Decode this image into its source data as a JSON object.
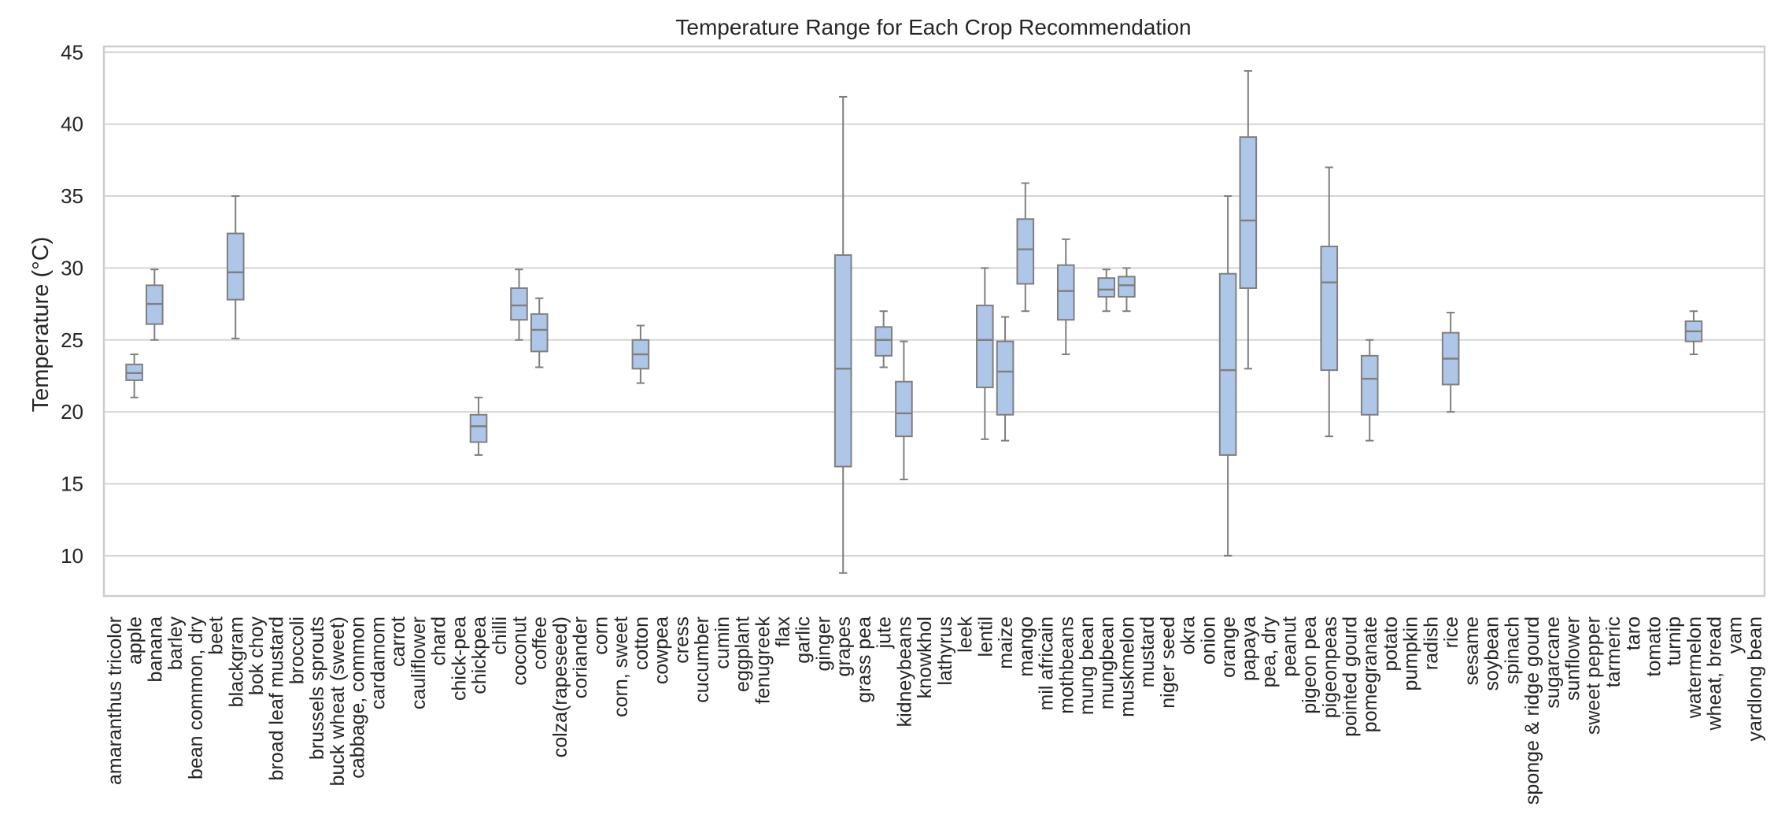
{
  "chart_data": {
    "type": "box",
    "title": "Temperature Range for Each Crop Recommendation",
    "ylabel": "Temperature (°C)",
    "xlabel": "",
    "ylim": [
      7.2,
      45.4
    ],
    "yticks": [
      10,
      15,
      20,
      25,
      30,
      35,
      40,
      45
    ],
    "grid": true,
    "box_color": "#aec7e8",
    "line_color": "#7f7f7f",
    "categories": [
      "amaranthus tricolor",
      "apple",
      "banana",
      "barley",
      "bean common, dry",
      "beet",
      "blackgram",
      "bok choy",
      "broad leaf mustard",
      "broccoli",
      "brussels sprouts",
      "buck wheat (sweet)",
      "cabbage, common",
      "cardamom",
      "carrot",
      "cauliflower",
      "chard",
      "chick-pea",
      "chickpea",
      "chilli",
      "coconut",
      "coffee",
      "colza(rapeseed)",
      "coriander",
      "corn",
      "corn, sweet",
      "cotton",
      "cowpea",
      "cress",
      "cucumber",
      "cumin",
      "eggplant",
      "fenugreek",
      "flax",
      "garlic",
      "ginger",
      "grapes",
      "grass pea",
      "jute",
      "kidneybeans",
      "knowkhol",
      "lathyrus",
      "leek",
      "lentil",
      "maize",
      "mango",
      "mil africain",
      "mothbeans",
      "mung bean",
      "mungbean",
      "muskmelon",
      "mustard",
      "niger seed",
      "okra",
      "onion",
      "orange",
      "papaya",
      "pea, dry",
      "peanut",
      "pigeon pea",
      "pigeonpeas",
      "pointed gourd",
      "pomegranate",
      "potato",
      "pumpkin",
      "radish",
      "rice",
      "sesame",
      "soybean",
      "spinach",
      "sponge & ridge gourd",
      "sugarcane",
      "sunflower",
      "sweet pepper",
      "tarmeric",
      "taro",
      "tomato",
      "turnip",
      "watermelon",
      "wheat, bread",
      "yam",
      "yardlong bean"
    ],
    "boxes": [
      {
        "category": "apple",
        "min": 21.0,
        "q1": 22.2,
        "median": 22.7,
        "q3": 23.3,
        "max": 24.0
      },
      {
        "category": "banana",
        "min": 25.0,
        "q1": 26.1,
        "median": 27.5,
        "q3": 28.8,
        "max": 29.9
      },
      {
        "category": "blackgram",
        "min": 25.1,
        "q1": 27.8,
        "median": 29.7,
        "q3": 32.4,
        "max": 35.0
      },
      {
        "category": "chickpea",
        "min": 17.0,
        "q1": 17.9,
        "median": 19.0,
        "q3": 19.8,
        "max": 21.0
      },
      {
        "category": "coconut",
        "min": 25.0,
        "q1": 26.4,
        "median": 27.4,
        "q3": 28.6,
        "max": 29.9
      },
      {
        "category": "coffee",
        "min": 23.1,
        "q1": 24.2,
        "median": 25.7,
        "q3": 26.8,
        "max": 27.9
      },
      {
        "category": "cotton",
        "min": 22.0,
        "q1": 23.0,
        "median": 24.0,
        "q3": 25.0,
        "max": 26.0
      },
      {
        "category": "grapes",
        "min": 8.8,
        "q1": 16.2,
        "median": 23.0,
        "q3": 30.9,
        "max": 41.9
      },
      {
        "category": "jute",
        "min": 23.1,
        "q1": 23.9,
        "median": 25.0,
        "q3": 25.9,
        "max": 27.0
      },
      {
        "category": "kidneybeans",
        "min": 15.3,
        "q1": 18.3,
        "median": 19.9,
        "q3": 22.1,
        "max": 24.9
      },
      {
        "category": "lentil",
        "min": 18.1,
        "q1": 21.7,
        "median": 25.0,
        "q3": 27.4,
        "max": 30.0
      },
      {
        "category": "maize",
        "min": 18.0,
        "q1": 19.8,
        "median": 22.8,
        "q3": 24.9,
        "max": 26.6
      },
      {
        "category": "mango",
        "min": 27.0,
        "q1": 28.9,
        "median": 31.3,
        "q3": 33.4,
        "max": 35.9
      },
      {
        "category": "mothbeans",
        "min": 24.0,
        "q1": 26.4,
        "median": 28.4,
        "q3": 30.2,
        "max": 32.0
      },
      {
        "category": "mungbean",
        "min": 27.0,
        "q1": 28.0,
        "median": 28.5,
        "q3": 29.3,
        "max": 29.9
      },
      {
        "category": "muskmelon",
        "min": 27.0,
        "q1": 28.0,
        "median": 28.8,
        "q3": 29.4,
        "max": 30.0
      },
      {
        "category": "orange",
        "min": 10.0,
        "q1": 17.0,
        "median": 22.9,
        "q3": 29.6,
        "max": 35.0
      },
      {
        "category": "papaya",
        "min": 23.0,
        "q1": 28.6,
        "median": 33.3,
        "q3": 39.1,
        "max": 43.7
      },
      {
        "category": "pigeonpeas",
        "min": 18.3,
        "q1": 22.9,
        "median": 29.0,
        "q3": 31.5,
        "max": 37.0
      },
      {
        "category": "pomegranate",
        "min": 18.0,
        "q1": 19.8,
        "median": 22.3,
        "q3": 23.9,
        "max": 25.0
      },
      {
        "category": "rice",
        "min": 20.0,
        "q1": 21.9,
        "median": 23.7,
        "q3": 25.5,
        "max": 26.9
      },
      {
        "category": "watermelon",
        "min": 24.0,
        "q1": 24.9,
        "median": 25.6,
        "q3": 26.3,
        "max": 27.0
      }
    ]
  }
}
